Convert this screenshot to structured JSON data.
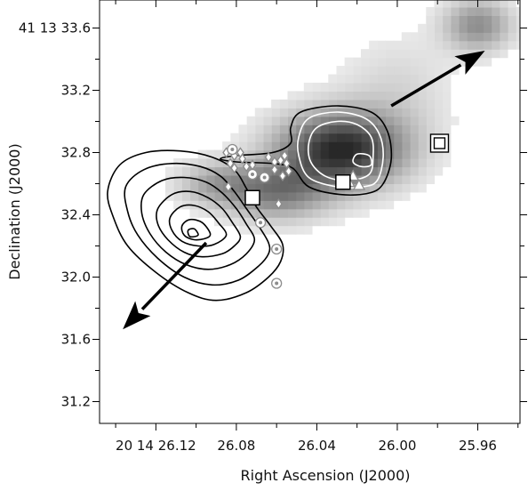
{
  "chart_data": {
    "type": "heatmap",
    "xlabel": "Right Ascension (J2000)",
    "ylabel": "Declination (J2000)",
    "x_axis": {
      "unit": "seconds of RA (20 14 ss.ss)",
      "range": [
        26.148,
        25.939
      ],
      "reversed": true,
      "ticks": [
        {
          "value": 26.12,
          "label": "20 14 26.12"
        },
        {
          "value": 26.08,
          "label": "26.08"
        },
        {
          "value": 26.04,
          "label": "26.04"
        },
        {
          "value": 26.0,
          "label": "26.00"
        },
        {
          "value": 25.96,
          "label": "25.96"
        }
      ],
      "minor_ticks": [
        26.14,
        26.1,
        26.06,
        26.02,
        25.98,
        25.94
      ]
    },
    "y_axis": {
      "unit": "arcsec of Dec (41 13 ss.s)",
      "range": [
        31.06,
        33.78
      ],
      "ticks": [
        {
          "value": 33.6,
          "label": "41 13 33.6"
        },
        {
          "value": 33.2,
          "label": "33.2"
        },
        {
          "value": 32.8,
          "label": "32.8"
        },
        {
          "value": 32.4,
          "label": "32.4"
        },
        {
          "value": 32.0,
          "label": "32.0"
        },
        {
          "value": 31.6,
          "label": "31.6"
        },
        {
          "value": 31.2,
          "label": "31.2"
        }
      ],
      "minor_ticks": [
        33.4,
        33.0,
        32.6,
        32.2,
        31.8,
        31.4
      ]
    },
    "grid": false,
    "greyscale_image": {
      "description": "pixelated greyscale emission map, darker = brighter emission",
      "components": [
        {
          "center": [
            26.028,
            32.82
          ],
          "sigma": [
            0.022,
            0.17
          ],
          "peak": 1.0
        },
        {
          "center": [
            26.06,
            32.55
          ],
          "sigma": [
            0.018,
            0.13
          ],
          "peak": 0.55
        },
        {
          "center": [
            26.09,
            32.6
          ],
          "sigma": [
            0.014,
            0.1
          ],
          "peak": 0.35
        },
        {
          "center": [
            25.96,
            33.62
          ],
          "sigma": [
            0.012,
            0.12
          ],
          "peak": 0.5
        },
        {
          "center": [
            26.0,
            33.2
          ],
          "sigma": [
            0.02,
            0.25
          ],
          "peak": 0.15
        }
      ],
      "pixel_size": [
        0.00405,
        0.054
      ],
      "threshold": 0.06
    },
    "contours": [
      {
        "name": "southeast component",
        "center": [
          26.106,
          32.29
        ],
        "color": "#000000",
        "levels": [
          [
            [
              26.057,
              32.21
            ],
            [
              26.063,
              32.33
            ],
            [
              26.07,
              32.45
            ],
            [
              26.075,
              32.57
            ],
            [
              26.081,
              32.69
            ],
            [
              26.092,
              32.77
            ],
            [
              26.108,
              32.81
            ],
            [
              26.125,
              32.8
            ],
            [
              26.138,
              32.72
            ],
            [
              26.144,
              32.55
            ],
            [
              26.141,
              32.38
            ],
            [
              26.134,
              32.2
            ],
            [
              26.12,
              32.03
            ],
            [
              26.104,
              31.9
            ],
            [
              26.09,
              31.85
            ],
            [
              26.075,
              31.9
            ],
            [
              26.064,
              32.0
            ],
            [
              26.058,
              32.1
            ]
          ],
          [
            [
              26.064,
              32.22
            ],
            [
              26.069,
              32.33
            ],
            [
              26.075,
              32.44
            ],
            [
              26.081,
              32.55
            ],
            [
              26.088,
              32.65
            ],
            [
              26.098,
              32.71
            ],
            [
              26.112,
              32.73
            ],
            [
              26.126,
              32.69
            ],
            [
              26.135,
              32.58
            ],
            [
              26.134,
              32.42
            ],
            [
              26.129,
              32.27
            ],
            [
              26.119,
              32.12
            ],
            [
              26.106,
              32.0
            ],
            [
              26.092,
              31.95
            ],
            [
              26.079,
              31.98
            ],
            [
              26.069,
              32.07
            ],
            [
              26.064,
              32.15
            ]
          ],
          [
            [
              26.071,
              32.24
            ],
            [
              26.075,
              32.34
            ],
            [
              26.08,
              32.44
            ],
            [
              26.087,
              32.54
            ],
            [
              26.095,
              32.61
            ],
            [
              26.106,
              32.64
            ],
            [
              26.117,
              32.62
            ],
            [
              26.126,
              32.53
            ],
            [
              26.127,
              32.41
            ],
            [
              26.123,
              32.28
            ],
            [
              26.115,
              32.16
            ],
            [
              26.105,
              32.08
            ],
            [
              26.094,
              32.05
            ],
            [
              26.083,
              32.08
            ],
            [
              26.075,
              32.15
            ]
          ],
          [
            [
              26.078,
              32.26
            ],
            [
              26.082,
              32.35
            ],
            [
              26.087,
              32.44
            ],
            [
              26.094,
              32.51
            ],
            [
              26.103,
              32.55
            ],
            [
              26.112,
              32.53
            ],
            [
              26.119,
              32.44
            ],
            [
              26.119,
              32.34
            ],
            [
              26.114,
              32.24
            ],
            [
              26.106,
              32.16
            ],
            [
              26.097,
              32.13
            ],
            [
              26.087,
              32.15
            ],
            [
              26.081,
              32.2
            ]
          ],
          [
            [
              26.085,
              32.27
            ],
            [
              26.089,
              32.35
            ],
            [
              26.094,
              32.42
            ],
            [
              26.101,
              32.46
            ],
            [
              26.108,
              32.45
            ],
            [
              26.113,
              32.38
            ],
            [
              26.112,
              32.3
            ],
            [
              26.107,
              32.23
            ],
            [
              26.099,
              32.2
            ],
            [
              26.091,
              32.21
            ]
          ],
          [
            [
              26.093,
              32.28
            ],
            [
              26.097,
              32.35
            ],
            [
              26.103,
              32.37
            ],
            [
              26.107,
              32.33
            ],
            [
              26.106,
              32.27
            ],
            [
              26.101,
              32.24
            ],
            [
              26.095,
              32.25
            ]
          ],
          [
            [
              26.099,
              32.27
            ],
            [
              26.101,
              32.31
            ],
            [
              26.104,
              32.3
            ],
            [
              26.103,
              32.26
            ]
          ]
        ]
      },
      {
        "name": "northwest component",
        "center": [
          26.028,
          32.82
        ],
        "color_inner": "#ffffff",
        "color_outer": "#000000",
        "levels": [
          [
            [
              26.007,
              32.6
            ],
            [
              26.003,
              32.76
            ],
            [
              26.005,
              32.94
            ],
            [
              26.013,
              33.06
            ],
            [
              26.03,
              33.1
            ],
            [
              26.048,
              33.06
            ],
            [
              26.053,
              32.96
            ],
            [
              26.053,
              32.86
            ],
            [
              26.062,
              32.8
            ],
            [
              26.08,
              32.78
            ],
            [
              26.088,
              32.76
            ],
            [
              26.08,
              32.74
            ],
            [
              26.062,
              32.73
            ],
            [
              26.052,
              32.7
            ],
            [
              26.044,
              32.58
            ],
            [
              26.028,
              32.53
            ],
            [
              26.014,
              32.54
            ]
          ],
          [
            [
              26.01,
              32.62
            ],
            [
              26.007,
              32.77
            ],
            [
              26.009,
              32.92
            ],
            [
              26.016,
              33.02
            ],
            [
              26.03,
              33.06
            ],
            [
              26.044,
              33.02
            ],
            [
              26.049,
              32.9
            ],
            [
              26.049,
              32.78
            ],
            [
              26.044,
              32.64
            ],
            [
              26.03,
              32.58
            ],
            [
              26.017,
              32.58
            ]
          ],
          [
            [
              26.014,
              32.66
            ],
            [
              26.012,
              32.78
            ],
            [
              26.013,
              32.9
            ],
            [
              26.02,
              32.98
            ],
            [
              26.03,
              33.0
            ],
            [
              26.04,
              32.96
            ],
            [
              26.044,
              32.86
            ],
            [
              26.043,
              32.74
            ],
            [
              26.036,
              32.65
            ],
            [
              26.025,
              32.62
            ]
          ],
          [
            [
              26.013,
              32.72
            ],
            [
              26.014,
              32.78
            ],
            [
              26.02,
              32.79
            ],
            [
              26.022,
              32.74
            ],
            [
              26.018,
              32.71
            ]
          ]
        ]
      }
    ],
    "markers": {
      "circles": {
        "symbol": "concentric circle",
        "color": "#8c8c8c",
        "points": [
          [
            26.082,
            32.82
          ],
          [
            26.072,
            32.66
          ],
          [
            26.066,
            32.64
          ],
          [
            26.068,
            32.35
          ],
          [
            26.06,
            32.18
          ],
          [
            26.06,
            31.96
          ]
        ]
      },
      "diamonds": {
        "symbol": "diamond",
        "color": "#8c8c8c",
        "points": [
          [
            26.085,
            32.8
          ],
          [
            26.081,
            32.78
          ],
          [
            26.078,
            32.8
          ],
          [
            26.077,
            32.76
          ],
          [
            26.083,
            32.73
          ],
          [
            26.081,
            32.7
          ],
          [
            26.075,
            32.71
          ],
          [
            26.072,
            32.72
          ],
          [
            26.084,
            32.58
          ],
          [
            26.064,
            32.77
          ],
          [
            26.061,
            32.74
          ],
          [
            26.058,
            32.75
          ],
          [
            26.055,
            32.73
          ],
          [
            26.056,
            32.78
          ],
          [
            26.061,
            32.69
          ],
          [
            26.057,
            32.65
          ],
          [
            26.054,
            32.68
          ],
          [
            26.059,
            32.47
          ]
        ]
      },
      "squares": {
        "symbol": "open square",
        "color": "#000000",
        "points": [
          [
            26.072,
            32.51
          ],
          [
            26.027,
            32.61
          ]
        ]
      },
      "double_squares": {
        "symbol": "double square",
        "color": "#000000",
        "points": [
          [
            25.979,
            32.86
          ]
        ]
      },
      "triangles": {
        "symbol": "triangle",
        "color": "#8c8c8c",
        "points": [
          [
            26.022,
            32.65
          ],
          [
            26.024,
            32.61
          ],
          [
            26.019,
            32.59
          ]
        ]
      }
    },
    "arrows": [
      {
        "from": [
          26.003,
          33.1
        ],
        "to": [
          25.957,
          33.45
        ],
        "color": "#000000"
      },
      {
        "from": [
          26.095,
          32.22
        ],
        "to": [
          26.136,
          31.67
        ],
        "color": "#000000"
      }
    ]
  }
}
